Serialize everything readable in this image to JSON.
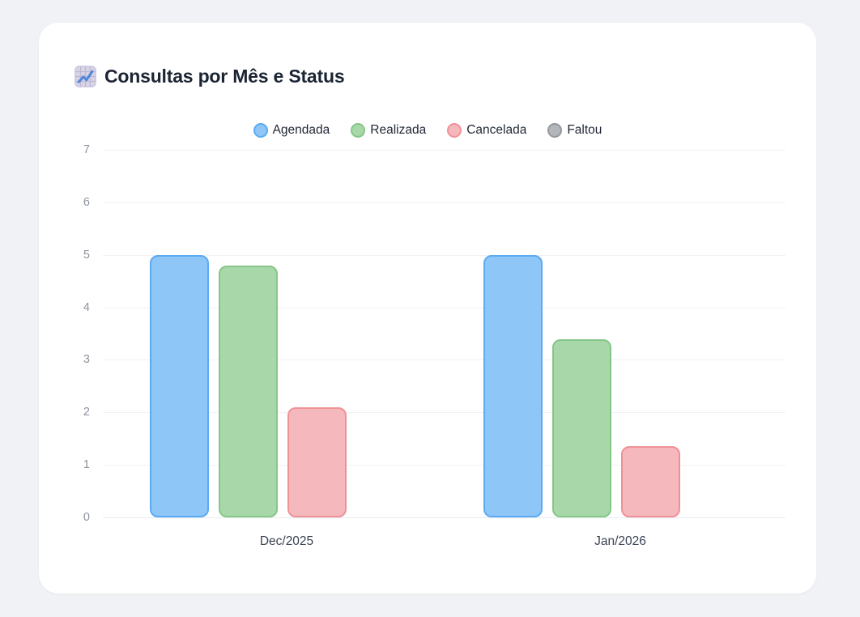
{
  "card": {
    "title": "Consultas por Mês e Status",
    "title_icon": "chart-increasing"
  },
  "chart_data": {
    "type": "bar",
    "title": "Consultas por Mês e Status",
    "categories": [
      "Dec/2025",
      "Jan/2026"
    ],
    "series": [
      {
        "name": "Agendada",
        "values": [
          5,
          5
        ],
        "fill": "#8ec6f8",
        "border": "#5baaf3"
      },
      {
        "name": "Realizada",
        "values": [
          4.8,
          3.4
        ],
        "fill": "#a8d8a9",
        "border": "#85c787"
      },
      {
        "name": "Cancelada",
        "values": [
          2.1,
          1.35
        ],
        "fill": "#f5b8bd",
        "border": "#ef9298"
      },
      {
        "name": "Faltou",
        "values": [
          0,
          0
        ],
        "fill": "#b3b6bb",
        "border": "#94979c"
      }
    ],
    "xlabel": "",
    "ylabel": "",
    "ylim": [
      0,
      7
    ],
    "yticks": [
      0,
      1,
      2,
      3,
      4,
      5,
      6,
      7
    ],
    "grid": true,
    "legend_position": "top"
  }
}
